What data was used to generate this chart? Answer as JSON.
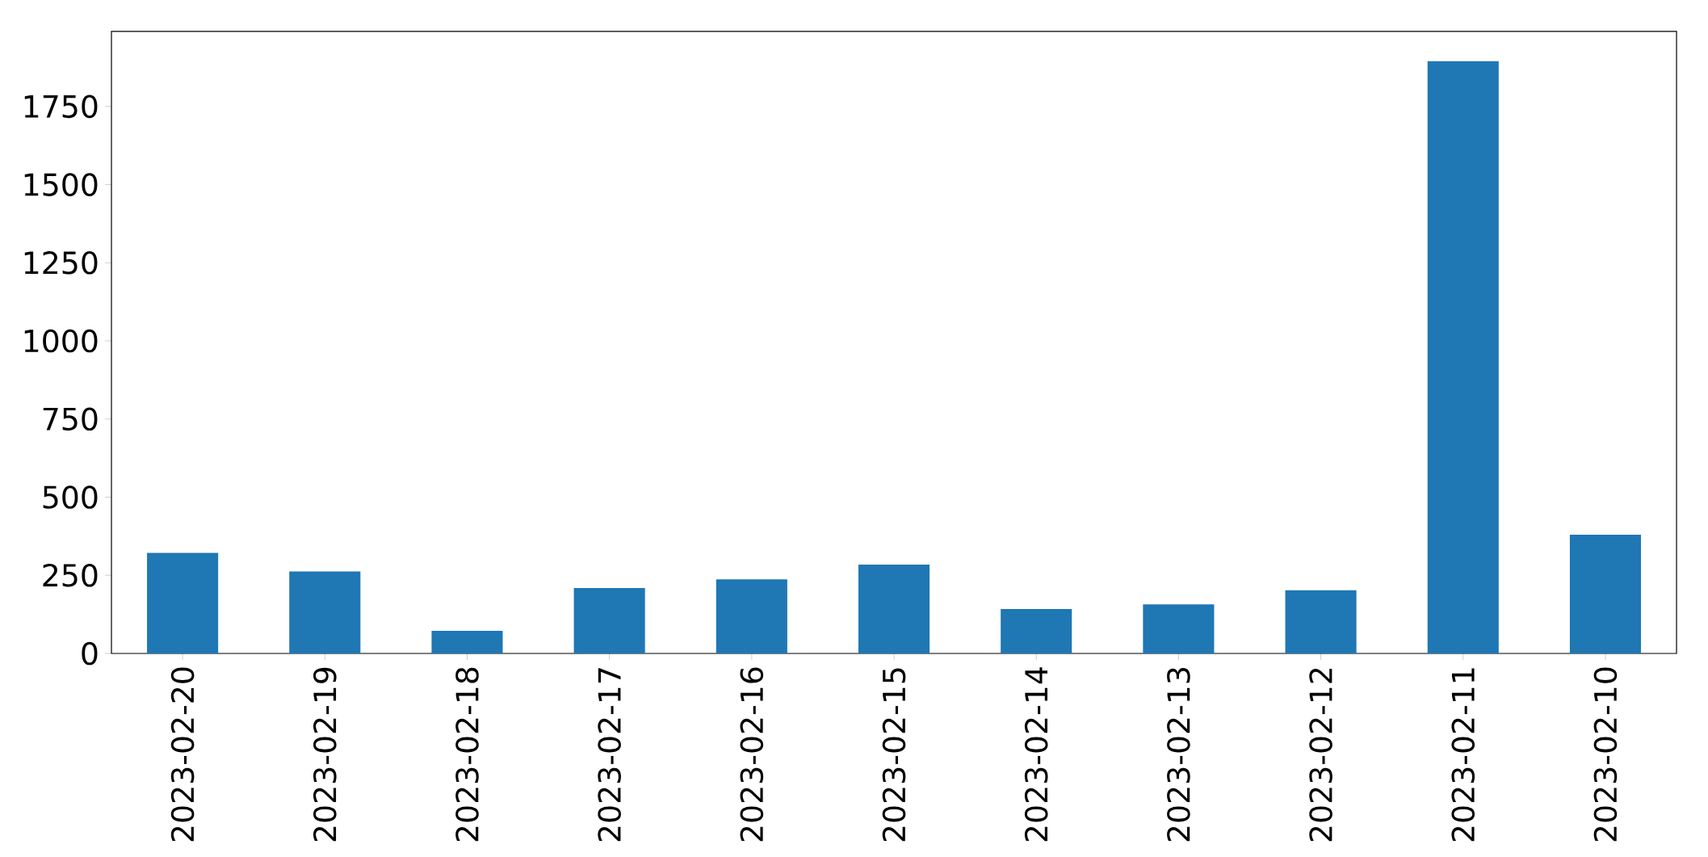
{
  "chart_data": {
    "type": "bar",
    "categories": [
      "2023-02-20",
      "2023-02-19",
      "2023-02-18",
      "2023-02-17",
      "2023-02-16",
      "2023-02-15",
      "2023-02-14",
      "2023-02-13",
      "2023-02-12",
      "2023-02-11",
      "2023-02-10"
    ],
    "values": [
      322,
      262,
      72,
      209,
      237,
      284,
      142,
      157,
      202,
      1895,
      380
    ],
    "color": "#1f77b4",
    "ylim": [
      0,
      1990
    ],
    "yticks": [
      0,
      250,
      500,
      750,
      1000,
      1250,
      1500,
      1750
    ],
    "grid": false
  }
}
